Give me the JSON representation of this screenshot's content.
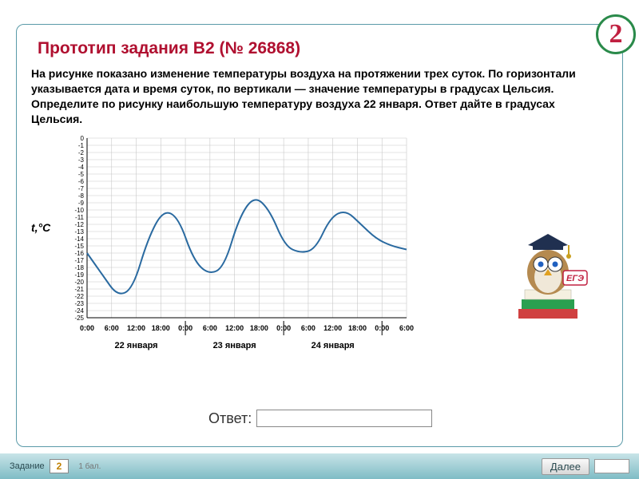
{
  "badge": {
    "number": "2",
    "border_color": "#2a8a4a",
    "text_color": "#c02040"
  },
  "title": "Прототип задания B2 (№ 26868)",
  "title_color": "#b01030",
  "problem_text": "На рисунке показано изменение температуры воздуха на протяжении трех суток. По горизонтали указывается дата и время суток, по вертикали — значение температуры в градусах Цельсия. Определите по рисунку наибольшую температуру воздуха 22 января. Ответ дайте в градусах Цельсия.",
  "axis_label": "t,°C",
  "chart": {
    "type": "line",
    "ylim": [
      -25,
      0
    ],
    "ytick_step": 1,
    "line_color": "#2a6aa0",
    "grid_color": "#c8c8c8",
    "background_color": "#ffffff",
    "x_times": [
      "0:00",
      "6:00",
      "12:00",
      "18:00",
      "0:00",
      "6:00",
      "12:00",
      "18:00",
      "0:00",
      "6:00",
      "12:00",
      "18:00",
      "0:00",
      "6:00"
    ],
    "x_days": [
      "22 января",
      "23 января",
      "24 января"
    ],
    "points": [
      [
        0,
        -16
      ],
      [
        1,
        -19
      ],
      [
        2,
        -22
      ],
      [
        3,
        -21
      ],
      [
        4,
        -14
      ],
      [
        5,
        -10
      ],
      [
        6,
        -11
      ],
      [
        7,
        -17
      ],
      [
        8,
        -19
      ],
      [
        9,
        -18
      ],
      [
        10,
        -11
      ],
      [
        11,
        -8
      ],
      [
        12,
        -10
      ],
      [
        13,
        -15
      ],
      [
        14,
        -16
      ],
      [
        15,
        -15.5
      ],
      [
        16,
        -11
      ],
      [
        17,
        -10
      ],
      [
        18,
        -12
      ],
      [
        19,
        -14
      ],
      [
        20,
        -15
      ],
      [
        21,
        -15.5
      ]
    ]
  },
  "mascot": {
    "book_color": "#2aa050",
    "cap_color": "#203050",
    "badge_text": "ЕГЭ"
  },
  "answer": {
    "label": "Ответ:",
    "value": ""
  },
  "footer": {
    "task_label": "Задание",
    "task_number": "2",
    "points": "1 бал.",
    "next": "Далее"
  }
}
